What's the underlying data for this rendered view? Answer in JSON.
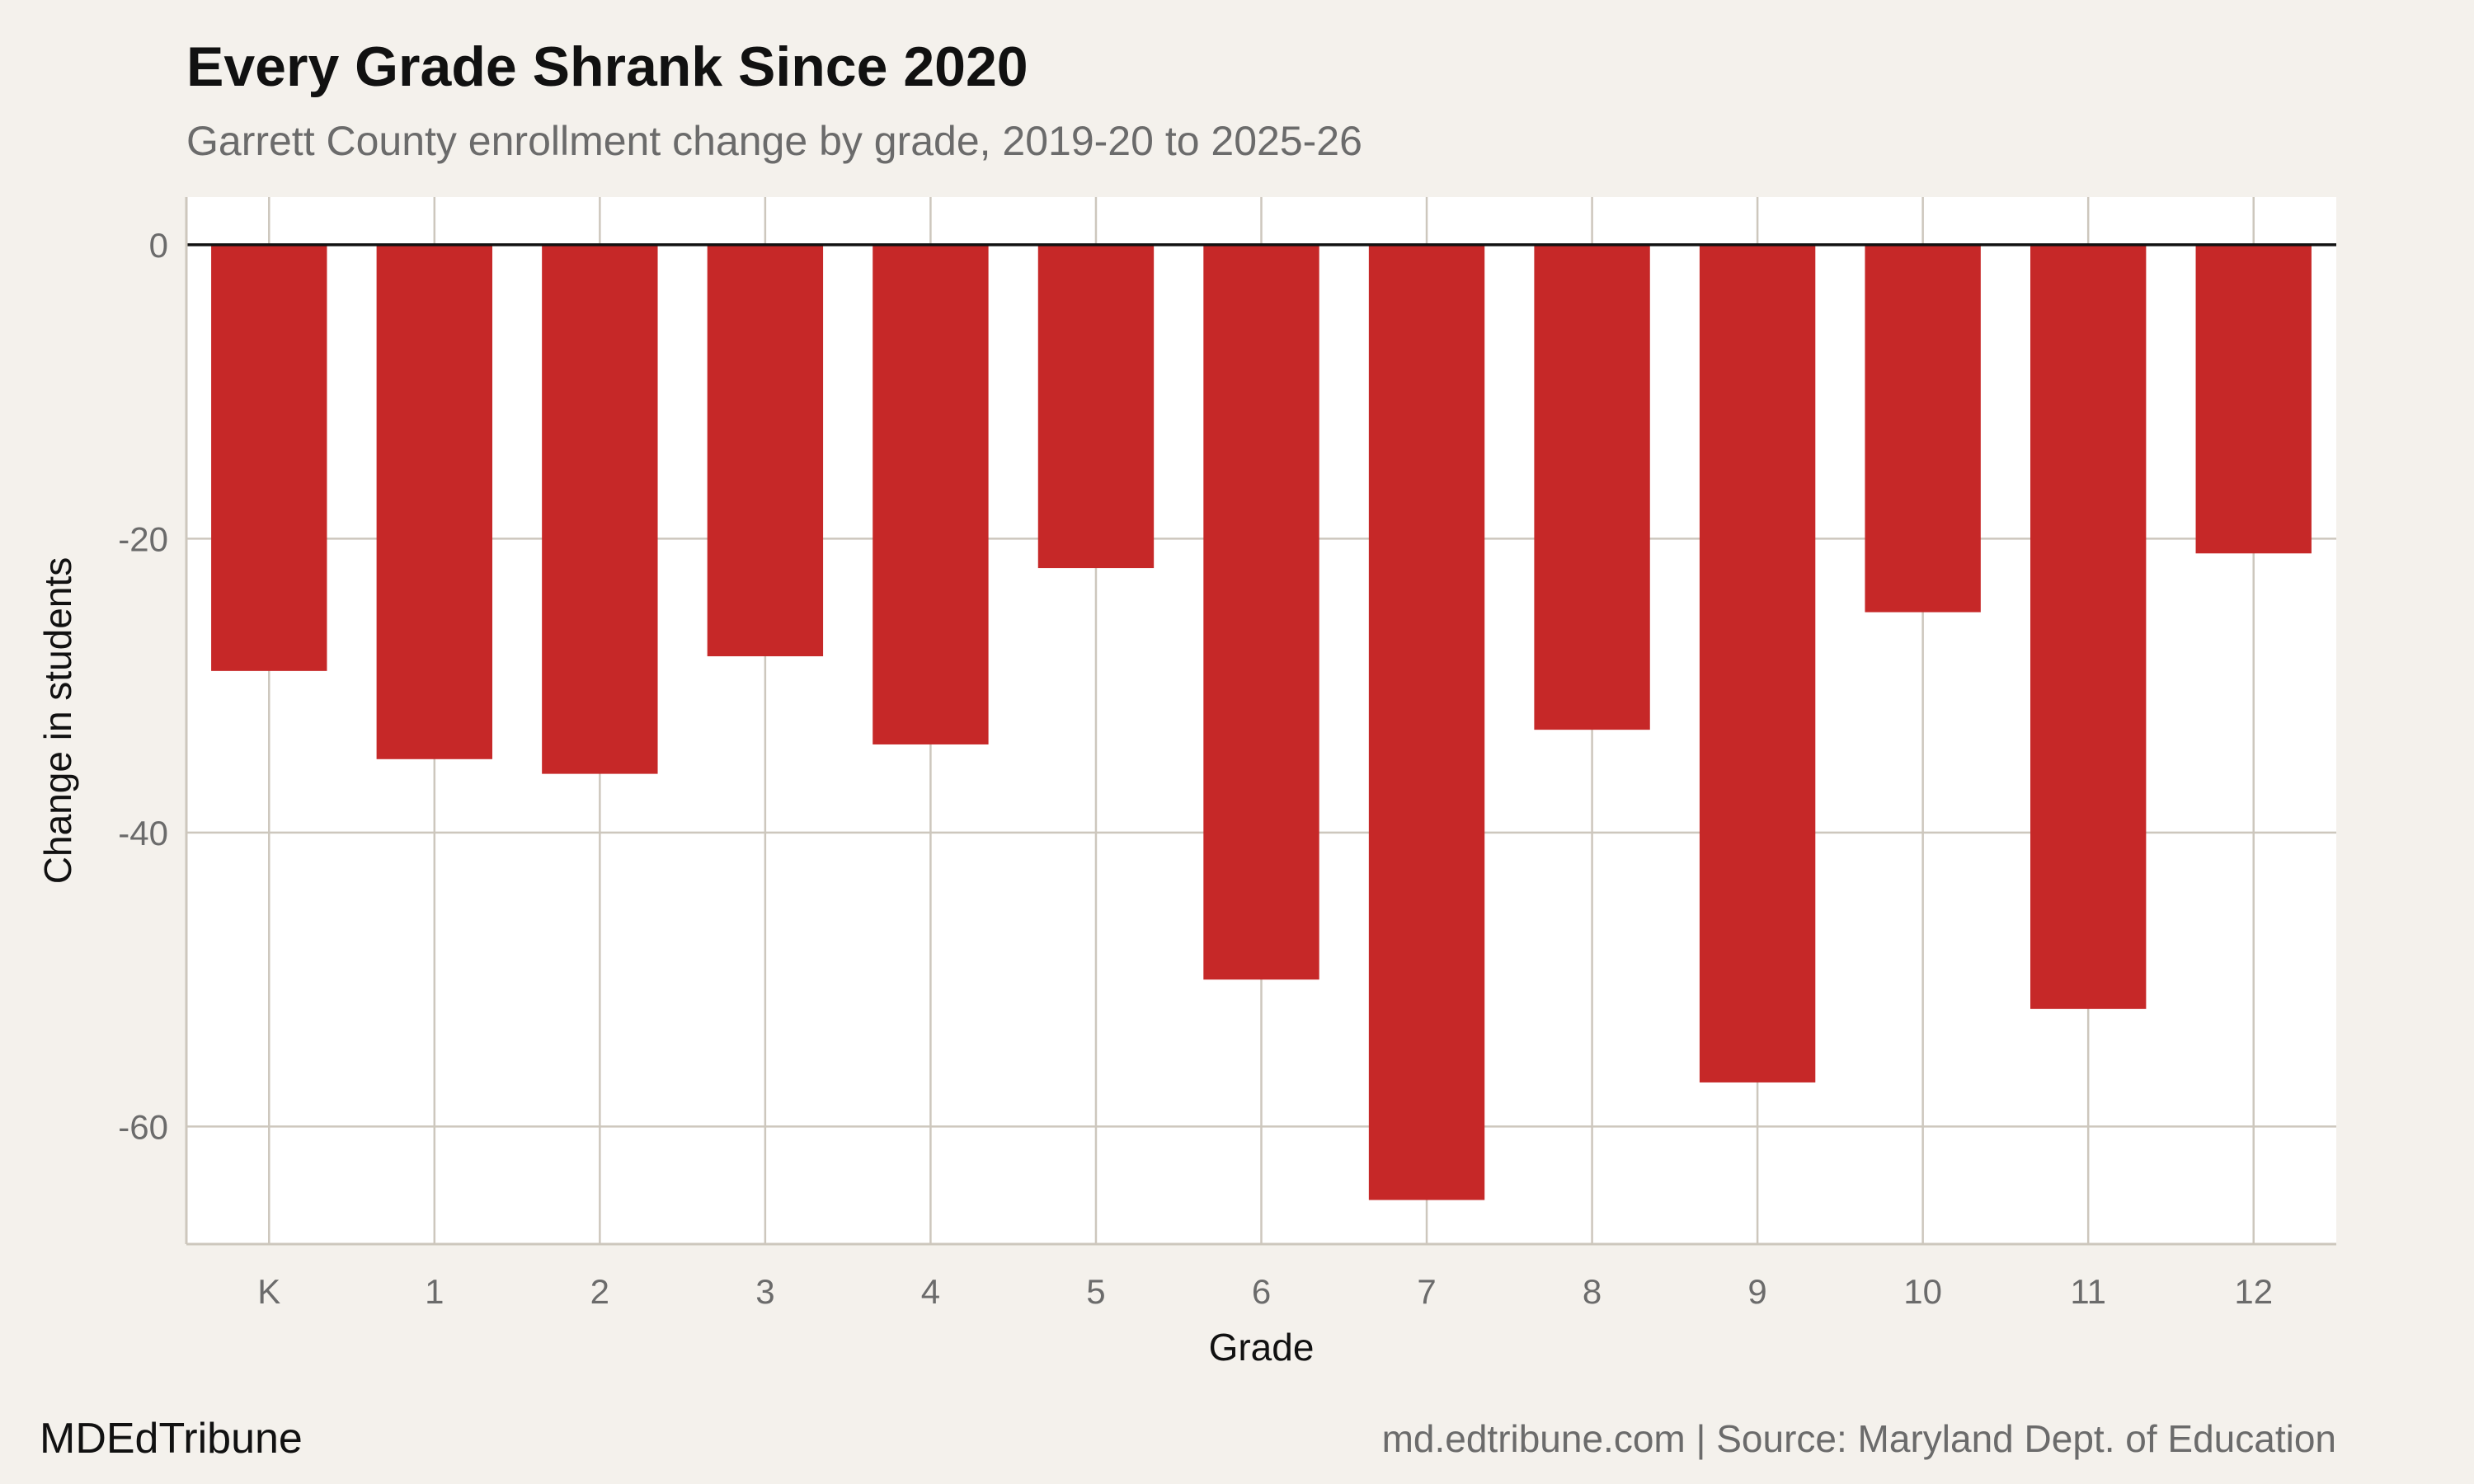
{
  "chart_data": {
    "type": "bar",
    "title": "Every Grade Shrank Since 2020",
    "subtitle": "Garrett County enrollment change by grade, 2019-20 to 2025-26",
    "xlabel": "Grade",
    "ylabel": "Change in students",
    "categories": [
      "K",
      "1",
      "2",
      "3",
      "4",
      "5",
      "6",
      "7",
      "8",
      "9",
      "10",
      "11",
      "12"
    ],
    "values": [
      -29,
      -35,
      -36,
      -28,
      -34,
      -22,
      -50,
      -65,
      -33,
      -57,
      -25,
      -52,
      -21
    ],
    "ylim": [
      -68,
      3.25
    ],
    "yticks": [
      0,
      -20,
      -40,
      -60
    ],
    "grid": true,
    "bar_color": "#c62828",
    "background": "#f4f1ec"
  },
  "footer": {
    "brand": "MDEdTribune",
    "source": "md.edtribune.com | Source: Maryland Dept. of Education"
  }
}
